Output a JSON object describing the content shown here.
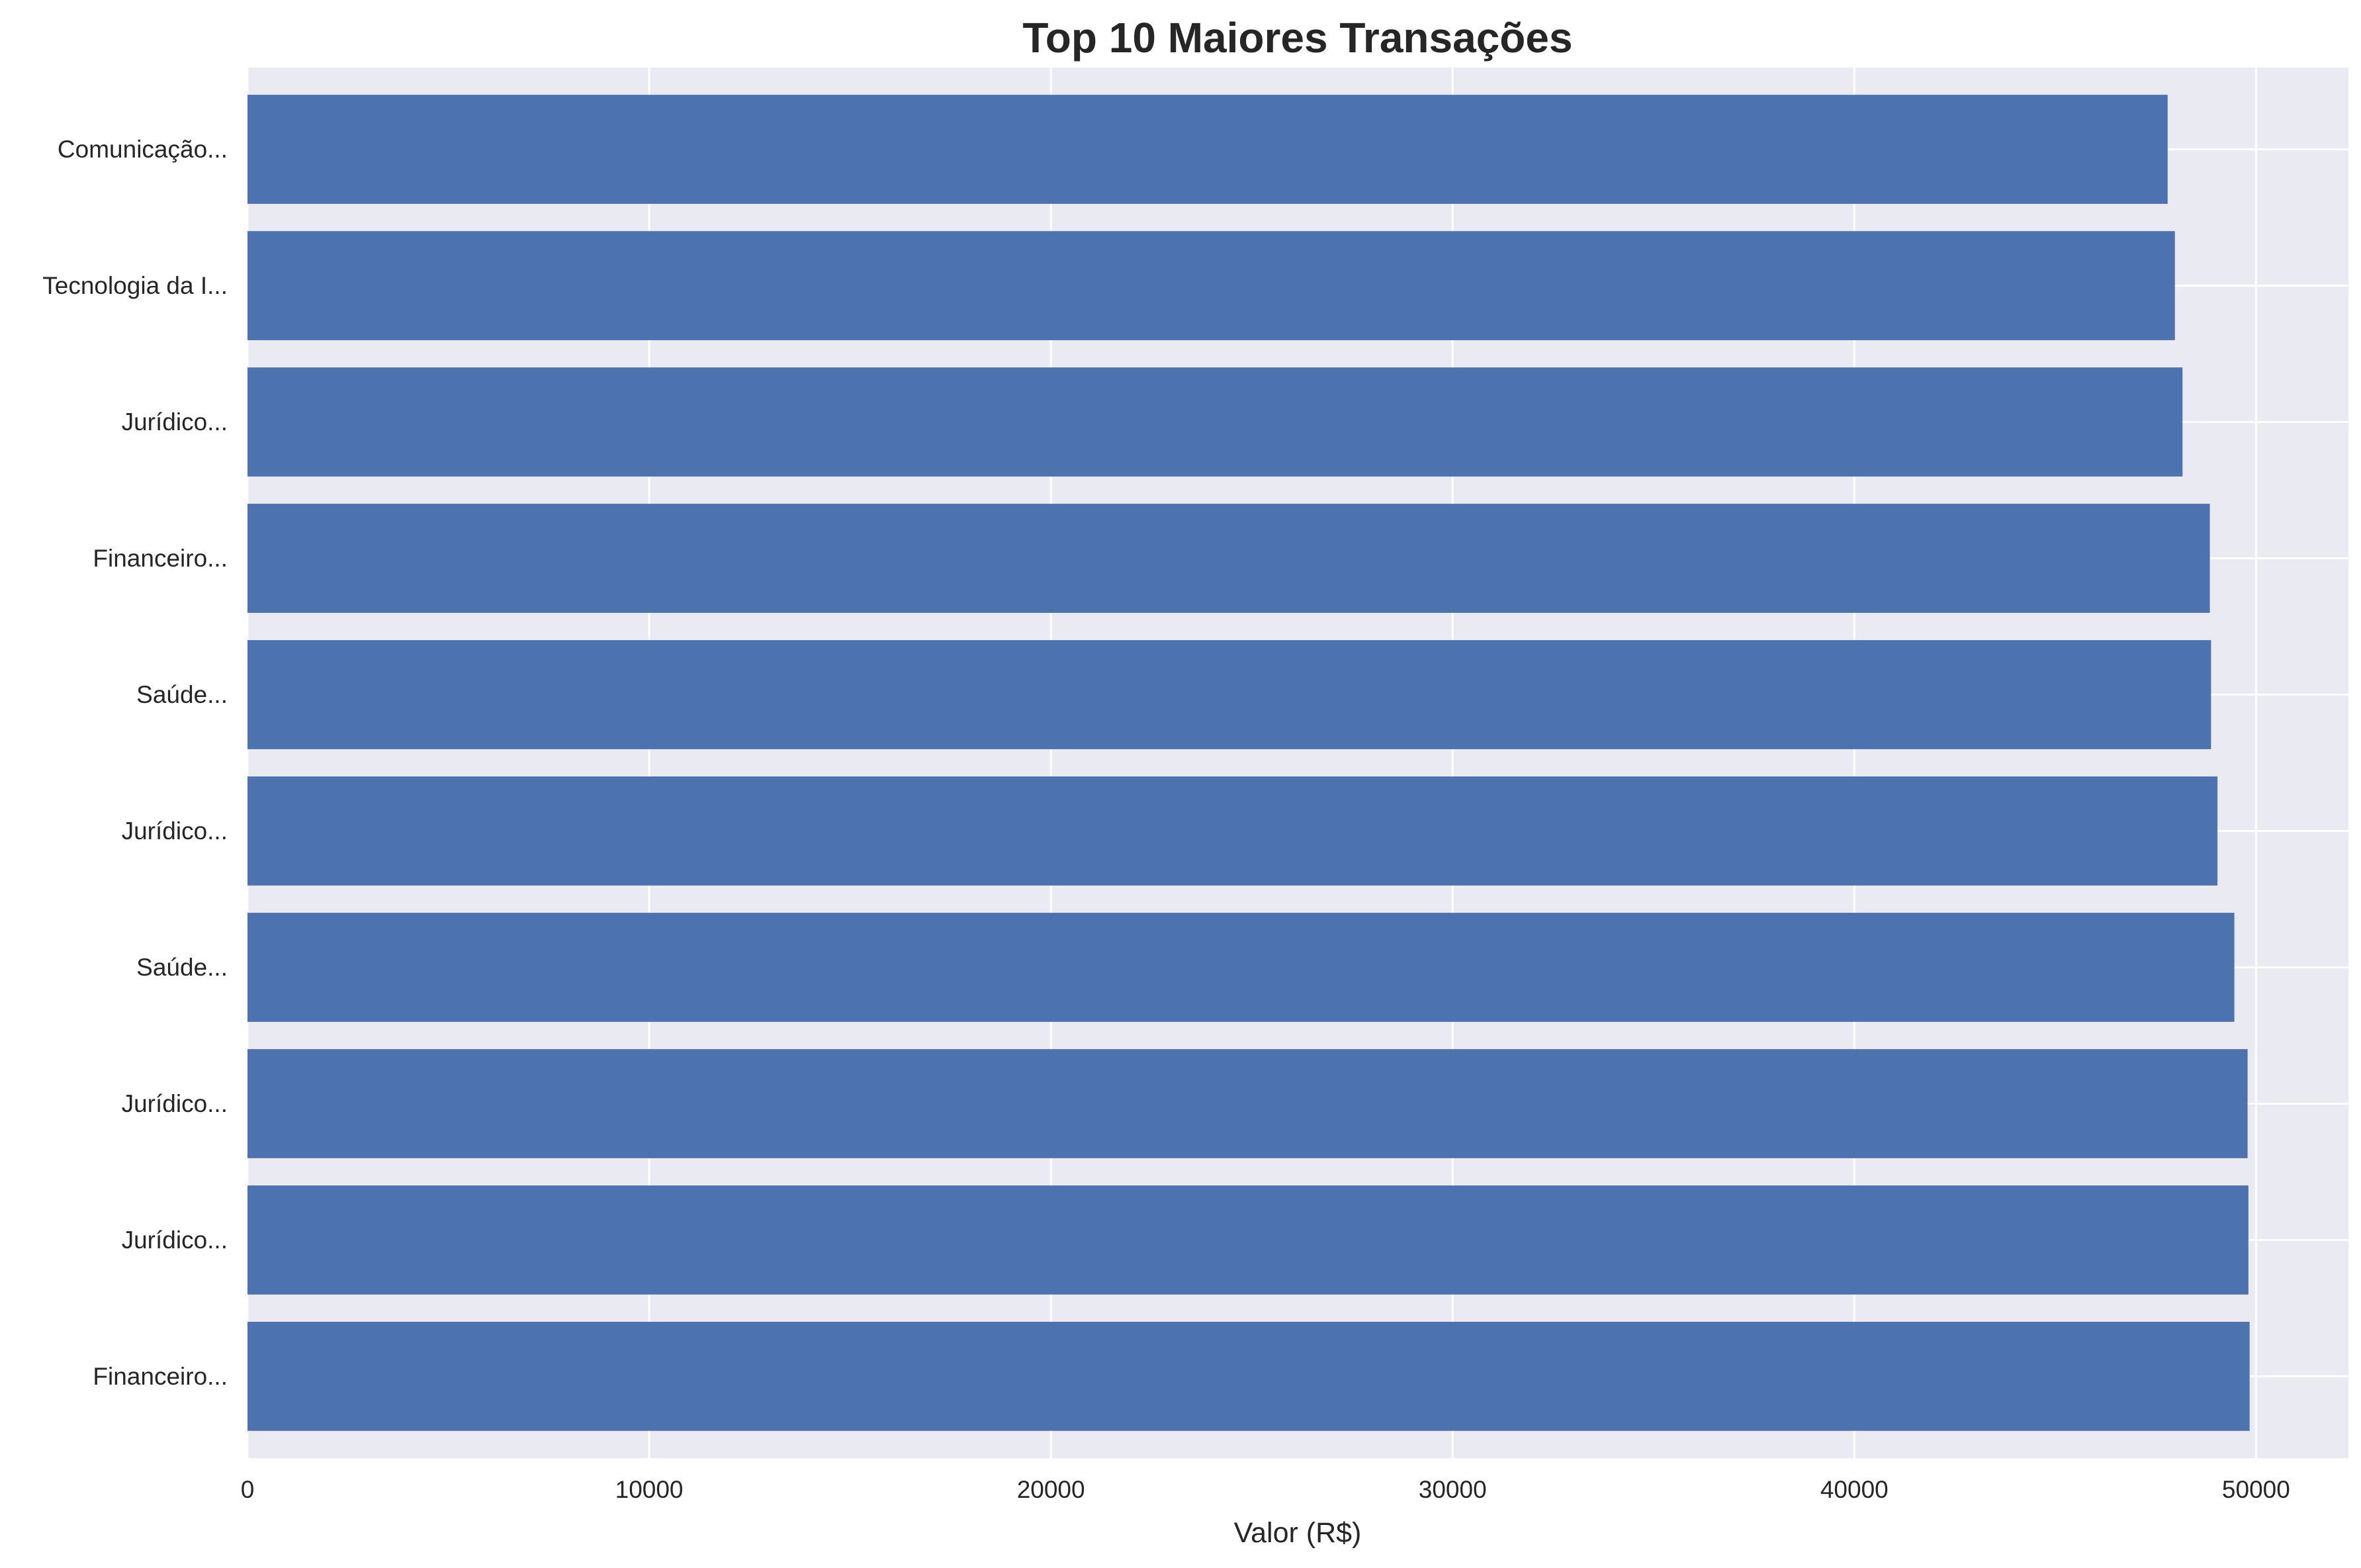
{
  "chart_data": {
    "type": "bar",
    "orientation": "horizontal",
    "title": "Top 10 Maiores Transações",
    "xlabel": "Valor (R$)",
    "ylabel": "",
    "categories": [
      "Comunicação...",
      "Tecnologia da I...",
      "Jurídico...",
      "Financeiro...",
      "Saúde...",
      "Jurídico...",
      "Saúde...",
      "Jurídico...",
      "Jurídico...",
      "Financeiro..."
    ],
    "values": [
      47800,
      47980,
      48170,
      48850,
      48880,
      49040,
      49460,
      49790,
      49810,
      49840
    ],
    "xlim": [
      0,
      52300
    ],
    "xticks": [
      0,
      10000,
      20000,
      30000,
      40000,
      50000
    ],
    "xtick_labels": [
      "0",
      "10000",
      "20000",
      "30000",
      "40000",
      "50000"
    ],
    "grid": true,
    "legend": false,
    "colors": {
      "bar": "#4c72b0",
      "background": "#eaeaf2",
      "grid": "#ffffff",
      "text": "#262626"
    }
  }
}
